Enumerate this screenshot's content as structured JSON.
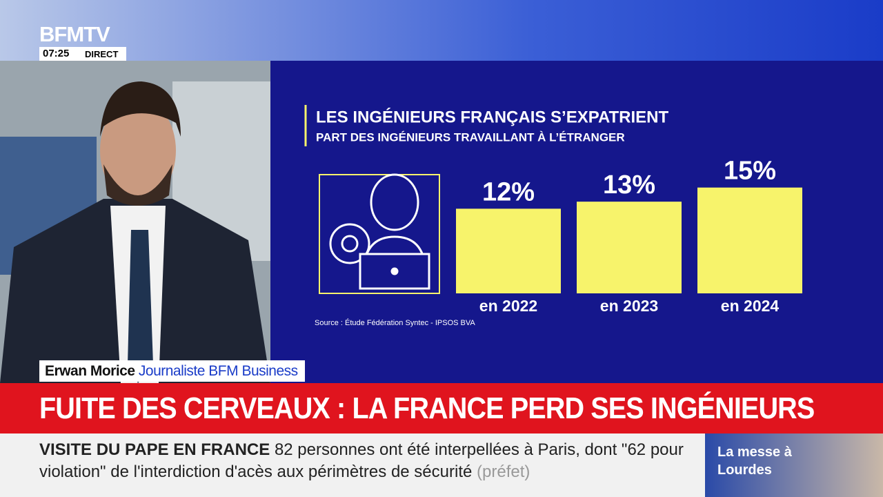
{
  "channel": {
    "logo": "BFMTV",
    "time": "07:25",
    "live": "DIRECT"
  },
  "chart_data": {
    "type": "bar",
    "title": "LES INGÉNIEURS FRANÇAIS S’EXPATRIENT",
    "subtitle": "PART DES INGÉNIEURS TRAVAILLANT À L’ÉTRANGER",
    "categories": [
      "en 2022",
      "en 2023",
      "en 2024"
    ],
    "values": [
      12,
      13,
      15
    ],
    "value_labels": [
      "12%",
      "13%",
      "15%"
    ],
    "color": "#f7f36b",
    "source": "Source : Étude Fédération Syntec - IPSOS BVA"
  },
  "speaker": {
    "name": "Erwan Morice",
    "role": "Journaliste BFM Business"
  },
  "headline": "FUITE DES CERVEAUX : LA FRANCE PERD SES INGÉNIEURS",
  "ticker": {
    "topic": "VISITE DU PAPE EN FRANCE",
    "text": "82 personnes ont été interpellées à Paris, dont \"62 pour violation\" de l'interdiction d'acès aux périmètres de sécurité",
    "source": "(préfet)"
  },
  "promo": "La messe à Lourdes"
}
